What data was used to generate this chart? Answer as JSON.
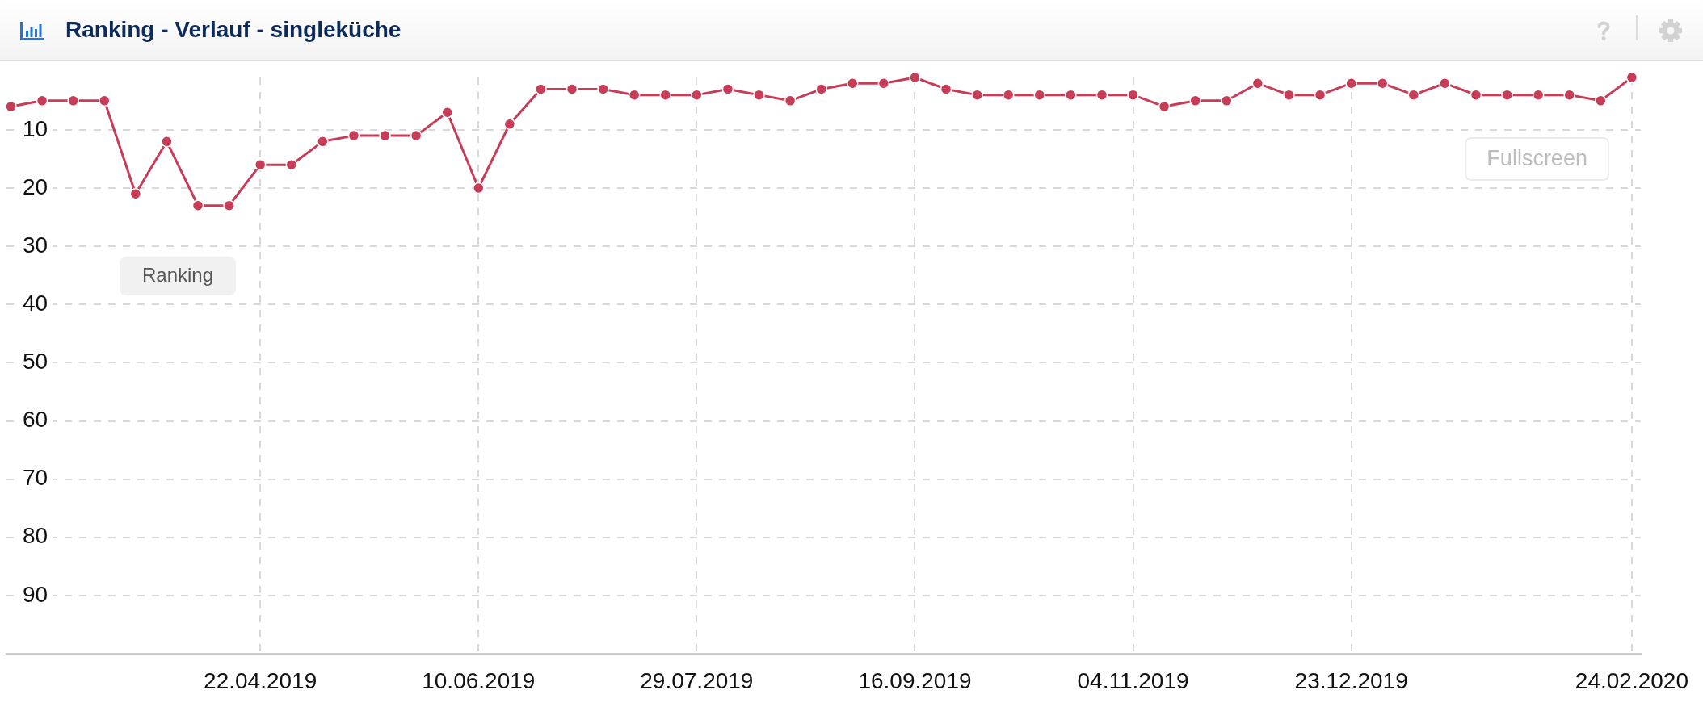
{
  "chart_data": {
    "type": "line",
    "title": "Ranking - Verlauf - singleküche",
    "legend_title": "Ranking",
    "annotations": [
      "Fullscreen"
    ],
    "x": [
      "2019-02-25",
      "2019-03-04",
      "2019-03-11",
      "2019-03-18",
      "2019-03-25",
      "2019-04-01",
      "2019-04-08",
      "2019-04-15",
      "2019-04-22",
      "2019-04-29",
      "2019-05-06",
      "2019-05-13",
      "2019-05-20",
      "2019-05-27",
      "2019-06-03",
      "2019-06-10",
      "2019-06-17",
      "2019-06-24",
      "2019-07-01",
      "2019-07-08",
      "2019-07-15",
      "2019-07-22",
      "2019-07-29",
      "2019-08-05",
      "2019-08-12",
      "2019-08-19",
      "2019-08-26",
      "2019-09-02",
      "2019-09-09",
      "2019-09-16",
      "2019-09-23",
      "2019-09-30",
      "2019-10-07",
      "2019-10-14",
      "2019-10-21",
      "2019-10-28",
      "2019-11-04",
      "2019-11-11",
      "2019-11-18",
      "2019-11-25",
      "2019-12-02",
      "2019-12-09",
      "2019-12-16",
      "2019-12-23",
      "2019-12-30",
      "2020-01-06",
      "2020-01-13",
      "2020-01-20",
      "2020-01-27",
      "2020-02-03",
      "2020-02-10",
      "2020-02-17",
      "2020-02-24"
    ],
    "values": [
      6,
      5,
      5,
      5,
      21,
      12,
      23,
      23,
      16,
      16,
      12,
      11,
      11,
      11,
      7,
      20,
      9,
      3,
      3,
      3,
      4,
      4,
      4,
      3,
      4,
      5,
      3,
      2,
      2,
      1,
      3,
      4,
      4,
      4,
      4,
      4,
      4,
      6,
      5,
      5,
      2,
      4,
      4,
      2,
      2,
      4,
      2,
      4,
      4,
      4,
      4,
      5,
      1
    ],
    "color": "#c73c57",
    "xlim": [
      "2019-02-24",
      "2020-02-26"
    ],
    "xticks": [
      {
        "value": "2019-04-22",
        "label": "22.04.2019"
      },
      {
        "value": "2019-06-10",
        "label": "10.06.2019"
      },
      {
        "value": "2019-07-29",
        "label": "29.07.2019"
      },
      {
        "value": "2019-09-16",
        "label": "16.09.2019"
      },
      {
        "value": "2019-11-04",
        "label": "04.11.2019"
      },
      {
        "value": "2019-12-23",
        "label": "23.12.2019"
      },
      {
        "value": "2020-02-24",
        "label": "24.02.2020"
      }
    ],
    "ylim": [
      100,
      1
    ],
    "yticks": [
      10,
      20,
      30,
      40,
      50,
      60,
      70,
      80,
      90
    ],
    "grid": true,
    "marker": "circle",
    "line_style": "solid"
  }
}
